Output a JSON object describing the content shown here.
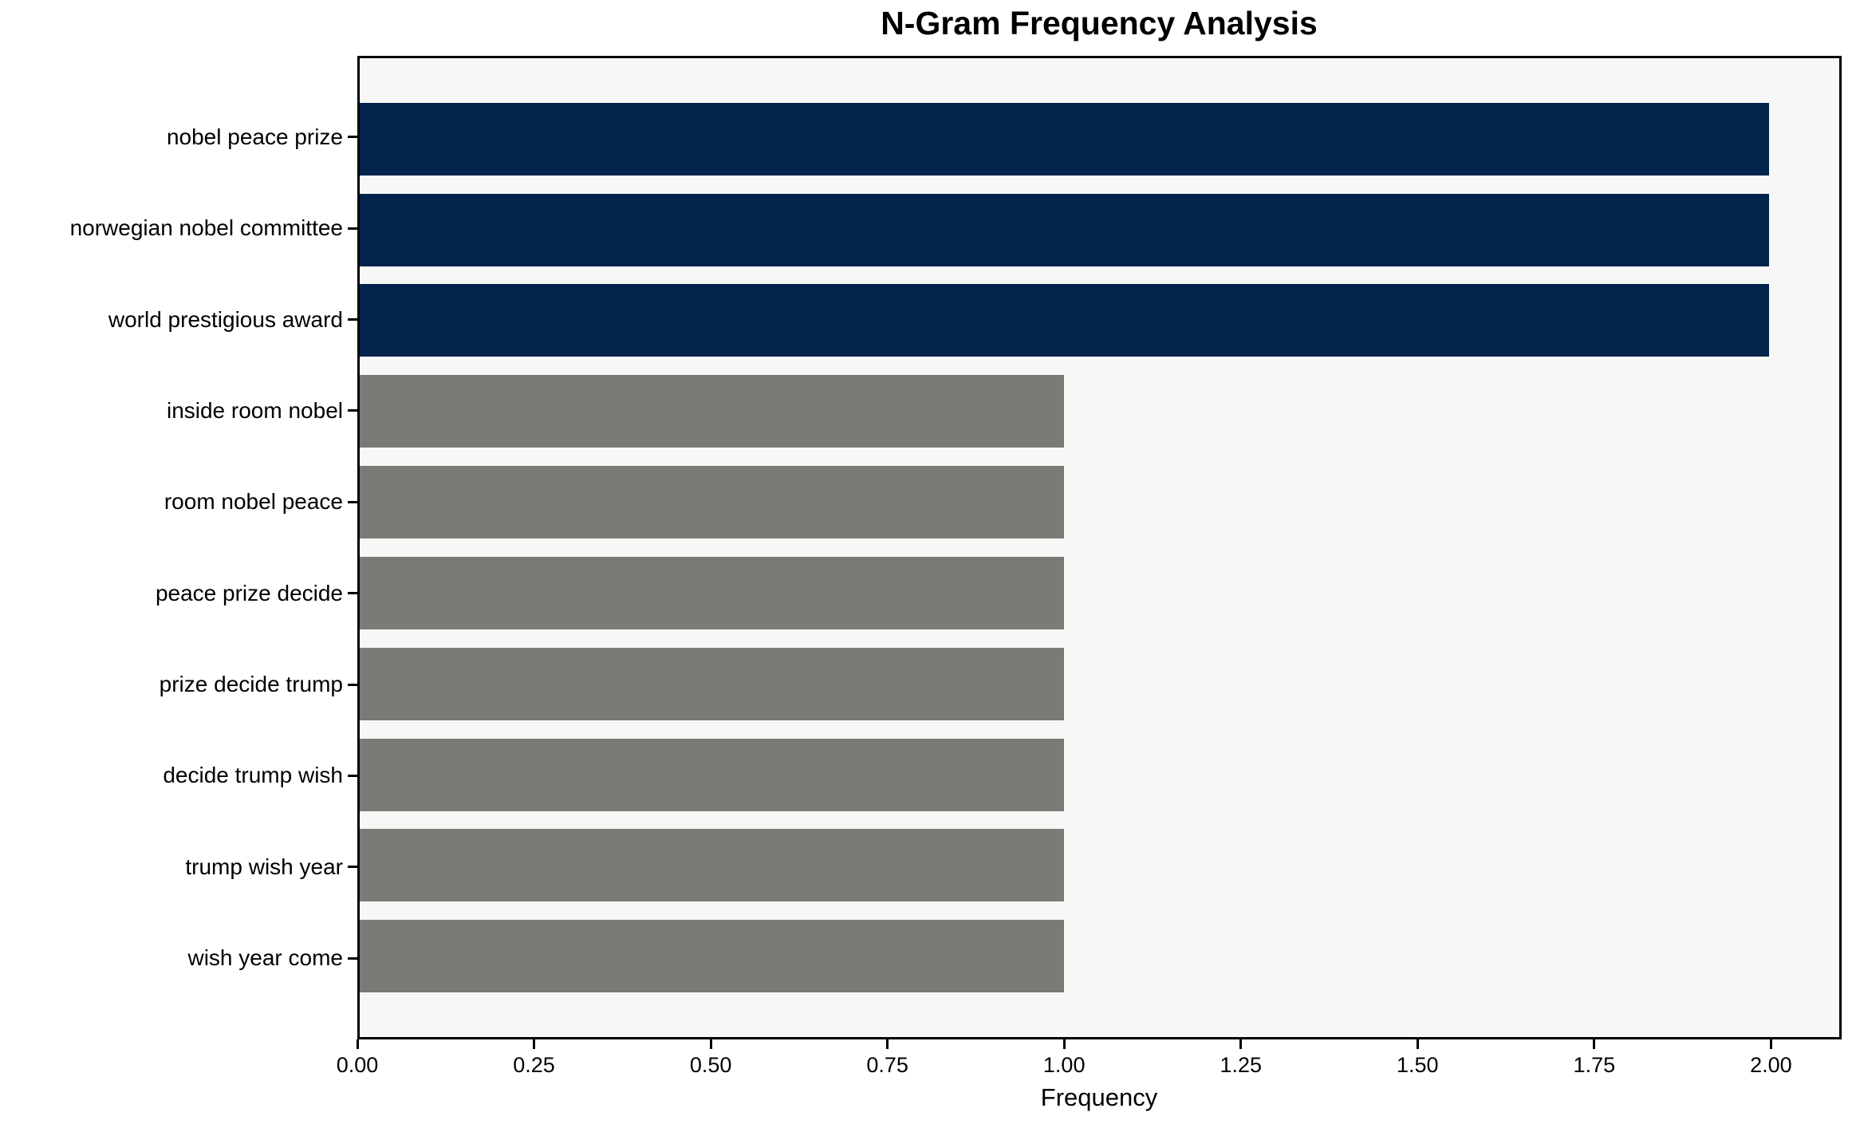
{
  "chart_data": {
    "type": "bar",
    "orientation": "horizontal",
    "title": "N-Gram Frequency Analysis",
    "xlabel": "Frequency",
    "ylabel": "",
    "categories": [
      "nobel peace prize",
      "norwegian nobel committee",
      "world prestigious award",
      "inside room nobel",
      "room nobel peace",
      "peace prize decide",
      "prize decide trump",
      "decide trump wish",
      "trump wish year",
      "wish year come"
    ],
    "values": [
      2,
      2,
      2,
      1,
      1,
      1,
      1,
      1,
      1,
      1
    ],
    "bar_colors": [
      "#02234B",
      "#02234B",
      "#02234B",
      "#7A7A77",
      "#7A7A77",
      "#7A7A77",
      "#7A7A77",
      "#7A7A77",
      "#7A7A77",
      "#7A7A77"
    ],
    "xlim": [
      0,
      2.1
    ],
    "xticks": [
      {
        "value": 0.0,
        "label": "0.00"
      },
      {
        "value": 0.25,
        "label": "0.25"
      },
      {
        "value": 0.5,
        "label": "0.50"
      },
      {
        "value": 0.75,
        "label": "0.75"
      },
      {
        "value": 1.0,
        "label": "1.00"
      },
      {
        "value": 1.25,
        "label": "1.25"
      },
      {
        "value": 1.5,
        "label": "1.50"
      },
      {
        "value": 1.75,
        "label": "1.75"
      },
      {
        "value": 2.0,
        "label": "2.00"
      }
    ],
    "grid": false,
    "legend": null,
    "colors": {
      "highlight_bar": "#02234B",
      "default_bar": "#7A7A77",
      "plot_background": "#F7F7F6",
      "figure_background": "#FFFFFF",
      "spine": "#000000"
    },
    "bar_height_units": 0.8,
    "category_margin_units": 0.49
  }
}
